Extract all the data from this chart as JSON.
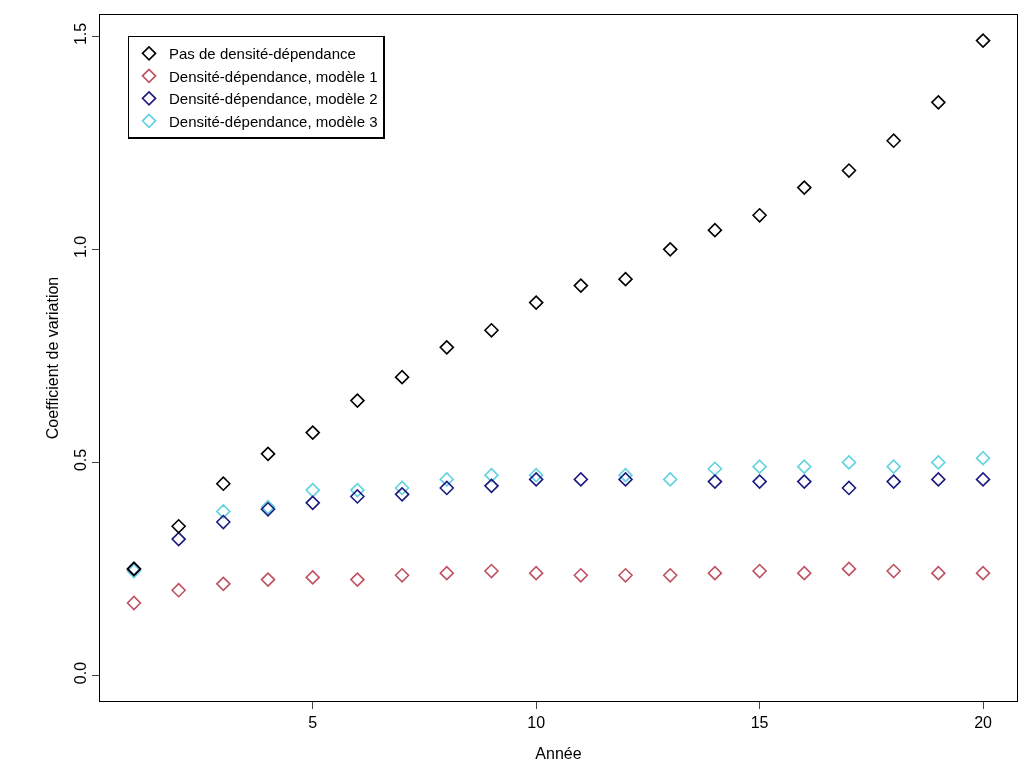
{
  "chart_data": {
    "type": "scatter",
    "xlabel": "Année",
    "ylabel": "Coefficient de variation",
    "x": [
      1,
      2,
      3,
      4,
      5,
      6,
      7,
      8,
      9,
      10,
      11,
      12,
      13,
      14,
      15,
      16,
      17,
      18,
      19,
      20
    ],
    "series": [
      {
        "name": "Pas de densité-dépendance",
        "color": "#000000",
        "values": [
          0.25,
          0.35,
          0.45,
          0.52,
          0.57,
          0.645,
          0.7,
          0.77,
          0.81,
          0.875,
          0.915,
          0.93,
          1.0,
          1.045,
          1.08,
          1.145,
          1.185,
          1.255,
          1.345,
          1.49
        ]
      },
      {
        "name": "Densité-dépendance, modèle 1",
        "color": "#c05060",
        "values": [
          0.17,
          0.2,
          0.215,
          0.225,
          0.23,
          0.225,
          0.235,
          0.24,
          0.245,
          0.24,
          0.235,
          0.235,
          0.235,
          0.24,
          0.245,
          0.24,
          0.25,
          0.245,
          0.24,
          0.24
        ]
      },
      {
        "name": "Densité-dépendance, modèle 2",
        "color": "#1a1a80",
        "values": [
          0.25,
          0.32,
          0.36,
          0.39,
          0.405,
          0.42,
          0.425,
          0.44,
          0.445,
          0.46,
          0.46,
          0.46,
          null,
          0.455,
          0.455,
          0.455,
          0.44,
          0.455,
          0.46,
          0.46
        ]
      },
      {
        "name": "Densité-dépendance, modèle 3",
        "color": "#5fd3e0",
        "values": [
          0.245,
          null,
          0.385,
          0.395,
          0.435,
          0.435,
          0.44,
          0.46,
          0.47,
          0.47,
          null,
          0.47,
          0.46,
          0.485,
          0.49,
          0.49,
          0.5,
          0.49,
          0.5,
          0.51
        ]
      }
    ],
    "xlim": [
      0.24,
      20.76
    ],
    "xticks": [
      5,
      10,
      15,
      20
    ],
    "ylim": [
      -0.06,
      1.55
    ],
    "yticks": [
      {
        "value": 0,
        "label": "0.0"
      },
      {
        "value": 0.5,
        "label": "0.5"
      },
      {
        "value": 1,
        "label": "1.0"
      },
      {
        "value": 1.5,
        "label": "1.5"
      }
    ],
    "grid": false,
    "legend": "top left",
    "marker": "diamond"
  }
}
